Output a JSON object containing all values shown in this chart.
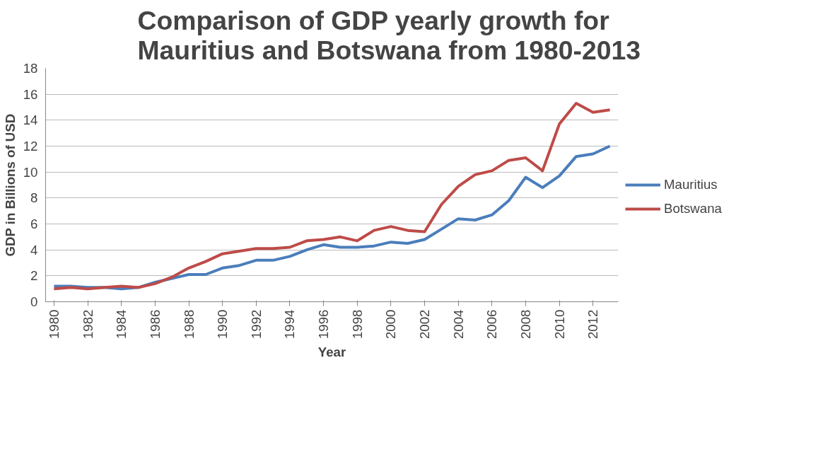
{
  "chart_data": {
    "type": "line",
    "title": "Comparison of GDP yearly growth for\nMauritius and Botswana from 1980-2013",
    "xlabel": "Year",
    "ylabel": "GDP in Billions of USD",
    "x": [
      1980,
      1981,
      1982,
      1983,
      1984,
      1985,
      1986,
      1987,
      1988,
      1989,
      1990,
      1991,
      1992,
      1993,
      1994,
      1995,
      1996,
      1997,
      1998,
      1999,
      2000,
      2001,
      2002,
      2003,
      2004,
      2005,
      2006,
      2007,
      2008,
      2009,
      2010,
      2011,
      2012,
      2013
    ],
    "series": [
      {
        "name": "Mauritius",
        "color": "#4a7ebb",
        "values": [
          1.2,
          1.2,
          1.1,
          1.1,
          1.0,
          1.1,
          1.5,
          1.8,
          2.1,
          2.1,
          2.6,
          2.8,
          3.2,
          3.2,
          3.5,
          4.0,
          4.4,
          4.2,
          4.2,
          4.3,
          4.6,
          4.5,
          4.8,
          5.6,
          6.4,
          6.3,
          6.7,
          7.8,
          9.6,
          8.8,
          9.7,
          11.2,
          11.4,
          12.0
        ]
      },
      {
        "name": "Botswana",
        "color": "#be4b48",
        "values": [
          1.0,
          1.1,
          1.0,
          1.1,
          1.2,
          1.1,
          1.4,
          1.9,
          2.6,
          3.1,
          3.7,
          3.9,
          4.1,
          4.1,
          4.2,
          4.7,
          4.8,
          5.0,
          4.7,
          5.5,
          5.8,
          5.5,
          5.4,
          7.5,
          8.9,
          9.8,
          10.1,
          10.9,
          11.1,
          10.1,
          13.7,
          15.3,
          14.6,
          14.8
        ]
      }
    ],
    "xlim": [
      1979.5,
      2013.5
    ],
    "xticks": [
      1980,
      1982,
      1984,
      1986,
      1988,
      1990,
      1992,
      1994,
      1996,
      1998,
      2000,
      2002,
      2004,
      2006,
      2008,
      2010,
      2012
    ],
    "ylim": [
      0,
      18
    ],
    "yticks": [
      0,
      2,
      4,
      6,
      8,
      10,
      12,
      14,
      16,
      18
    ],
    "grid": "y",
    "legend": "right",
    "marker": "none",
    "line_style": "solid"
  }
}
